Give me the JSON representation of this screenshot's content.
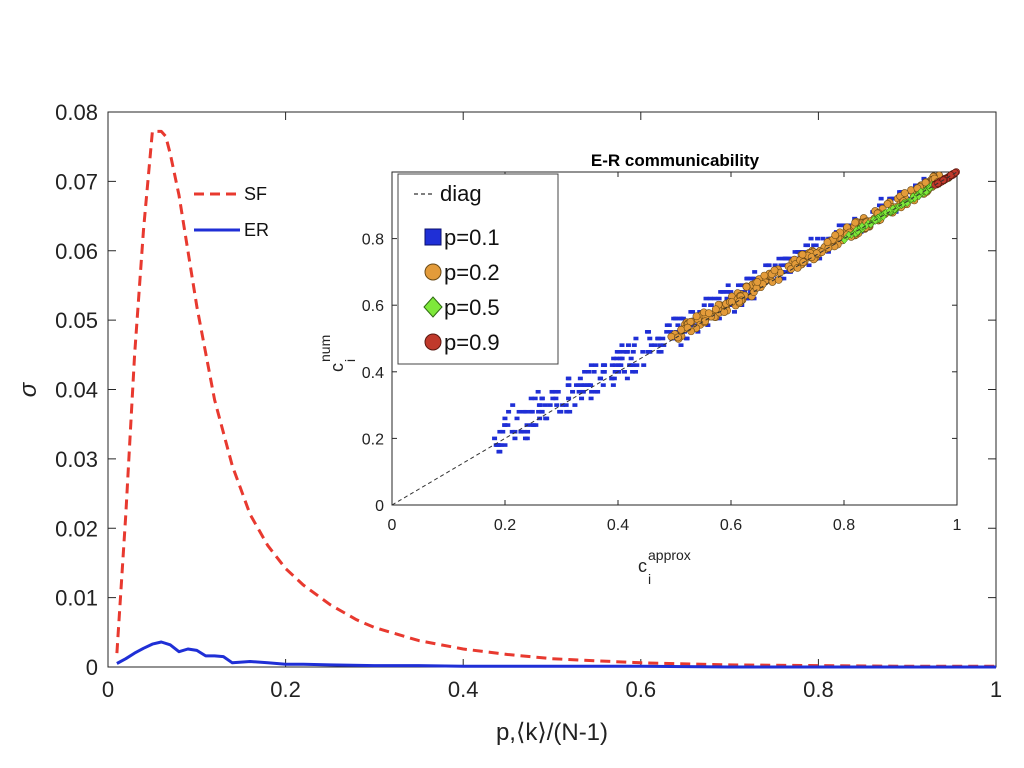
{
  "chart_data": [
    {
      "type": "line",
      "title": "",
      "xlabel": "p,⟨k⟩/(N-1)",
      "ylabel": "σ",
      "xlim": [
        0,
        1
      ],
      "ylim": [
        0,
        0.08
      ],
      "xticks": [
        "0",
        "0.2",
        "0.4",
        "0.6",
        "0.8",
        "1"
      ],
      "yticks": [
        "0",
        "0.01",
        "0.02",
        "0.03",
        "0.04",
        "0.05",
        "0.06",
        "0.07",
        "0.08"
      ],
      "legend_position": "top-left",
      "series": [
        {
          "name": "SF",
          "style": "dashed",
          "color": "#e8392f",
          "x": [
            0.01,
            0.02,
            0.03,
            0.04,
            0.05,
            0.06,
            0.065,
            0.07,
            0.08,
            0.09,
            0.1,
            0.12,
            0.14,
            0.16,
            0.18,
            0.2,
            0.22,
            0.25,
            0.28,
            0.3,
            0.35,
            0.4,
            0.45,
            0.5,
            0.55,
            0.6,
            0.7,
            0.8,
            0.9,
            1.0
          ],
          "y": [
            0.002,
            0.022,
            0.045,
            0.063,
            0.0772,
            0.0772,
            0.0765,
            0.074,
            0.068,
            0.06,
            0.052,
            0.0385,
            0.029,
            0.022,
            0.0175,
            0.0142,
            0.0118,
            0.009,
            0.0068,
            0.0057,
            0.0038,
            0.0026,
            0.0018,
            0.0012,
            0.0009,
            0.0006,
            0.0003,
            0.0002,
            0.0001,
            0.0001
          ]
        },
        {
          "name": "ER",
          "style": "solid",
          "color": "#1f2fd6",
          "x": [
            0.01,
            0.02,
            0.03,
            0.04,
            0.05,
            0.06,
            0.07,
            0.08,
            0.09,
            0.1,
            0.11,
            0.12,
            0.13,
            0.14,
            0.15,
            0.16,
            0.18,
            0.2,
            0.22,
            0.25,
            0.3,
            0.35,
            0.4,
            0.5,
            0.6,
            0.7,
            0.8,
            0.9,
            1.0
          ],
          "y": [
            0.0005,
            0.0012,
            0.002,
            0.0027,
            0.0033,
            0.0036,
            0.0032,
            0.0022,
            0.0026,
            0.0024,
            0.0016,
            0.0016,
            0.0015,
            0.0006,
            0.0007,
            0.0008,
            0.0006,
            0.0004,
            0.0004,
            0.0003,
            0.0002,
            0.0002,
            0.0001,
            0.0001,
            0.0001,
            0.0,
            0.0,
            0.0,
            0.0
          ]
        }
      ]
    },
    {
      "type": "scatter",
      "title": "E-R communicability",
      "xlabel_main": "c",
      "xlabel_sub": "i",
      "xlabel_sup": "approx",
      "ylabel_main": "c",
      "ylabel_sub": "i",
      "ylabel_sup": "num",
      "xlim": [
        0,
        1
      ],
      "ylim": [
        0,
        1
      ],
      "xticks": [
        "0",
        "0.2",
        "0.4",
        "0.6",
        "0.8",
        "1"
      ],
      "yticks": [
        "0",
        "0.2",
        "0.4",
        "0.6",
        "0.8"
      ],
      "legend_position": "top-left",
      "series": [
        {
          "name": "diag",
          "marker": "dashed-line",
          "color": "#333333",
          "x": [
            0,
            1
          ],
          "y": [
            0,
            1
          ]
        },
        {
          "name": "p=0.1",
          "marker": "square",
          "color": "#1f2fd6",
          "x_range": [
            0.18,
            0.95
          ],
          "spread": 0.06
        },
        {
          "name": "p=0.2",
          "marker": "circle",
          "color": "#e39b3a",
          "x_range": [
            0.49,
            0.97
          ],
          "spread": 0.02
        },
        {
          "name": "p=0.5",
          "marker": "diamond",
          "color": "#7ee83a",
          "x_range": [
            0.8,
            0.99
          ],
          "spread": 0.006
        },
        {
          "name": "p=0.9",
          "marker": "circle",
          "color": "#c0392b",
          "x_range": [
            0.96,
            1.0
          ],
          "spread": 0.002
        }
      ]
    }
  ]
}
